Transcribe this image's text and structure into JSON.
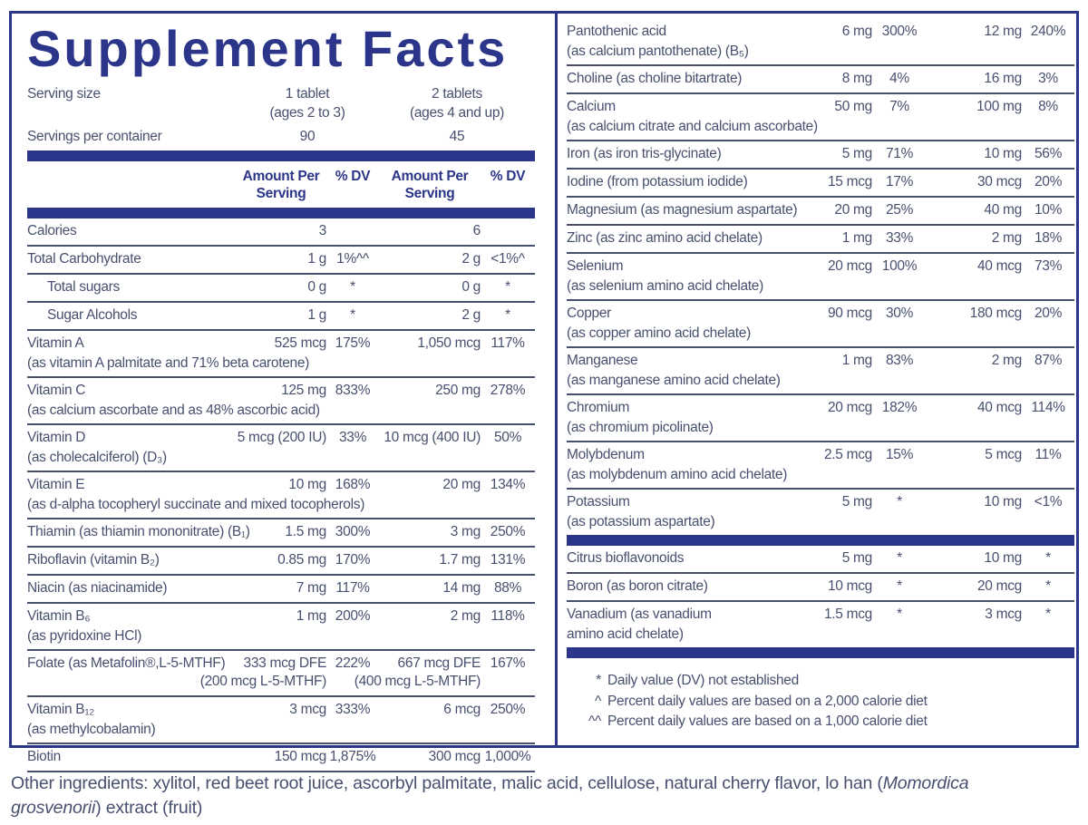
{
  "title": "Supplement Facts",
  "colors": {
    "navy": "#2b3589",
    "ink": "#48506f",
    "line": "#464f6e",
    "background": "#ffffff"
  },
  "serving": {
    "size_label": "Serving size",
    "col1_size": "1 tablet",
    "col1_ages": "(ages 2 to 3)",
    "col2_size": "2 tablets",
    "col2_ages": "(ages 4 and up)",
    "servings_label": "Servings per container",
    "col1_servings": "90",
    "col2_servings": "45"
  },
  "header": {
    "amount": "Amount Per Serving",
    "dv": "% DV"
  },
  "left_rows": [
    {
      "name": "Calories",
      "a1": "3",
      "dv1": "",
      "a2": "6",
      "dv2": ""
    },
    {
      "name": "Total Carbohydrate",
      "a1": "1 g",
      "dv1": "1%^^",
      "a2": "2 g",
      "dv2": "<1%^"
    },
    {
      "name": "Total sugars",
      "indent": true,
      "a1": "0 g",
      "dv1": "*",
      "a2": "0 g",
      "dv2": "*"
    },
    {
      "name": "Sugar Alcohols",
      "indent": true,
      "a1": "1 g",
      "dv1": "*",
      "a2": "2 g",
      "dv2": "*"
    },
    {
      "name": "Vitamin A",
      "sub": "(as vitamin A palmitate and 71% beta carotene)",
      "a1": "525 mcg",
      "dv1": "175%",
      "a2": "1,050 mcg",
      "dv2": "117%"
    },
    {
      "name": "Vitamin C",
      "sub": "(as calcium ascorbate and as 48% ascorbic acid)",
      "a1": "125 mg",
      "dv1": "833%",
      "a2": "250 mg",
      "dv2": "278%"
    },
    {
      "name": "Vitamin D",
      "sub": "(as cholecalciferol) (D₃)",
      "a1": "5 mcg (200 IU)",
      "dv1": "33%",
      "a2": "10 mcg (400 IU)",
      "dv2": "50%"
    },
    {
      "name": "Vitamin E",
      "sub": "(as d-alpha tocopheryl succinate and mixed tocopherols)",
      "a1": "10 mg",
      "dv1": "168%",
      "a2": "20 mg",
      "dv2": "134%"
    },
    {
      "name": "Thiamin (as thiamin mononitrate) (B₁)",
      "a1": "1.5 mg",
      "dv1": "300%",
      "a2": "3 mg",
      "dv2": "250%"
    },
    {
      "name": "Riboflavin (vitamin B₂)",
      "a1": "0.85 mg",
      "dv1": "170%",
      "a2": "1.7 mg",
      "dv2": "131%"
    },
    {
      "name": "Niacin (as niacinamide)",
      "a1": "7 mg",
      "dv1": "117%",
      "a2": "14 mg",
      "dv2": "88%"
    },
    {
      "name": "Vitamin B₆",
      "sub": "(as pyridoxine HCl)",
      "a1": "1 mg",
      "dv1": "200%",
      "a2": "2 mg",
      "dv2": "118%"
    },
    {
      "name": "Folate (as Metafolin®,L-5-MTHF)",
      "a1": "333 mcg DFE",
      "a1b": "(200 mcg L-5-MTHF)",
      "dv1": "222%",
      "a2": "667 mcg DFE",
      "a2b": "(400 mcg L-5-MTHF)",
      "dv2": "167%"
    },
    {
      "name": "Vitamin B₁₂",
      "sub": "(as methylcobalamin)",
      "a1": "3 mcg",
      "dv1": "333%",
      "a2": "6 mcg",
      "dv2": "250%"
    },
    {
      "name": "Biotin",
      "a1": "150 mcg",
      "dv1": "1,875%",
      "a2": "300 mcg",
      "dv2": "1,000%"
    }
  ],
  "right_rows": [
    {
      "name": "Pantothenic acid",
      "sub": "(as calcium pantothenate) (B₅)",
      "a1": "6 mg",
      "dv1": "300%",
      "a2": "12 mg",
      "dv2": "240%"
    },
    {
      "name": "Choline (as choline bitartrate)",
      "a1": "8 mg",
      "dv1": "4%",
      "a2": "16 mg",
      "dv2": "3%"
    },
    {
      "name": "Calcium",
      "sub": "(as calcium citrate and calcium ascorbate)",
      "a1": "50 mg",
      "dv1": "7%",
      "a2": "100 mg",
      "dv2": "8%"
    },
    {
      "name": "Iron (as iron tris-glycinate)",
      "a1": "5 mg",
      "dv1": "71%",
      "a2": "10 mg",
      "dv2": "56%"
    },
    {
      "name": "Iodine (from potassium iodide)",
      "a1": "15 mcg",
      "dv1": "17%",
      "a2": "30 mcg",
      "dv2": "20%"
    },
    {
      "name": "Magnesium (as magnesium aspartate)",
      "a1": "20 mg",
      "dv1": "25%",
      "a2": "40 mg",
      "dv2": "10%"
    },
    {
      "name": "Zinc (as zinc amino acid chelate)",
      "a1": "1 mg",
      "dv1": "33%",
      "a2": "2 mg",
      "dv2": "18%"
    },
    {
      "name": "Selenium",
      "sub": "(as selenium amino acid chelate)",
      "a1": "20 mcg",
      "dv1": "100%",
      "a2": "40 mcg",
      "dv2": "73%"
    },
    {
      "name": "Copper",
      "sub": "(as copper amino acid chelate)",
      "a1": "90 mcg",
      "dv1": "30%",
      "a2": "180 mcg",
      "dv2": "20%"
    },
    {
      "name": "Manganese",
      "sub": "(as manganese amino acid chelate)",
      "a1": "1 mg",
      "dv1": "83%",
      "a2": "2 mg",
      "dv2": "87%"
    },
    {
      "name": "Chromium",
      "sub": "(as chromium picolinate)",
      "a1": "20 mcg",
      "dv1": "182%",
      "a2": "40 mcg",
      "dv2": "114%"
    },
    {
      "name": "Molybdenum",
      "sub": "(as molybdenum amino acid chelate)",
      "a1": "2.5 mcg",
      "dv1": "15%",
      "a2": "5 mcg",
      "dv2": "11%"
    },
    {
      "name": "Potassium",
      "sub": "(as potassium aspartate)",
      "a1": "5 mg",
      "dv1": "*",
      "a2": "10 mg",
      "dv2": "<1%"
    }
  ],
  "right_rows2": [
    {
      "name": "Citrus bioflavonoids",
      "a1": "5 mg",
      "dv1": "*",
      "a2": "10 mg",
      "dv2": "*"
    },
    {
      "name": "Boron (as boron citrate)",
      "a1": "10 mcg",
      "dv1": "*",
      "a2": "20 mcg",
      "dv2": "*"
    },
    {
      "name": "Vanadium (as vanadium",
      "sub": "amino acid chelate)",
      "a1": "1.5 mcg",
      "dv1": "*",
      "a2": "3 mcg",
      "dv2": "*"
    }
  ],
  "footnotes": [
    {
      "sym": "*",
      "text": "Daily value (DV) not established"
    },
    {
      "sym": "^",
      "text": "Percent daily values are based on a 2,000 calorie diet"
    },
    {
      "sym": "^^",
      "text": "Percent daily values are based on a 1,000 calorie diet"
    }
  ],
  "other_ingredients": {
    "pre": "Other ingredients: xylitol, red beet root juice, ascorbyl palmitate, malic acid, cellulose, natural cherry flavor, lo han (",
    "italic": "Momordica grosvenorii",
    "post": ")  extract (fruit)"
  }
}
